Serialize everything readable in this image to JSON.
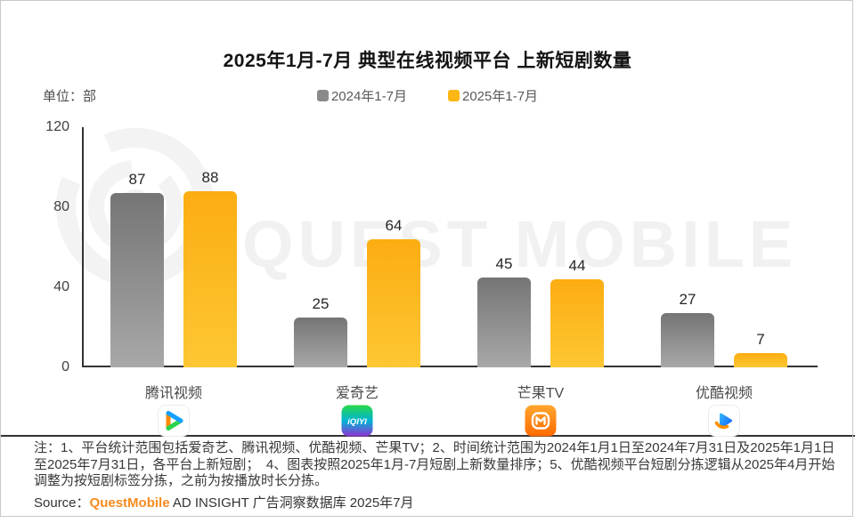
{
  "page": {
    "title": "2025年1月-7月 典型在线视频平台 上新短剧数量",
    "unit_label": "单位：部",
    "watermark": "QUEST MOBILE",
    "notes": "注：1、平台统计范围包括爱奇艺、腾讯视频、优酷视频、芒果TV；2、时间统计范围为2024年1月1日至2024年7月31日及2025年1月1日至2025年7月31日，各平台上新短剧；　4、图表按照2025年1月-7月短剧上新数量排序；5、优酷视频平台短剧分拣逻辑从2025年4月开始调整为按短剧标签分拣，之前为按播放时长分拣。",
    "source": {
      "prefix": "Source：",
      "brand": "QuestMobile",
      "suffix": " AD INSIGHT 广告洞察数据库 2025年7月"
    }
  },
  "legend": [
    {
      "label": "2024年1-7月",
      "color": "#8a8a8a"
    },
    {
      "label": "2025年1-7月",
      "color": "#fdb714"
    }
  ],
  "chart_data": {
    "type": "bar",
    "title": "2025年1月-7月 典型在线视频平台 上新短剧数量",
    "unit": "部",
    "categories": [
      "腾讯视频",
      "爱奇艺",
      "芒果TV",
      "优酷视频"
    ],
    "category_icons": [
      "tencent-video-icon",
      "iqiyi-icon",
      "mango-tv-icon",
      "youku-icon"
    ],
    "series": [
      {
        "name": "2024年1-7月",
        "color_top": "#757575",
        "color_bottom": "#a8a8a8",
        "values": [
          87,
          25,
          45,
          27
        ]
      },
      {
        "name": "2025年1-7月",
        "color_top": "#fcad12",
        "color_bottom": "#fdc733",
        "values": [
          88,
          64,
          44,
          7
        ]
      }
    ],
    "ylim": [
      0,
      120
    ],
    "yticks": [
      0,
      40,
      80,
      120
    ],
    "grid": false,
    "legend_position": "top"
  }
}
